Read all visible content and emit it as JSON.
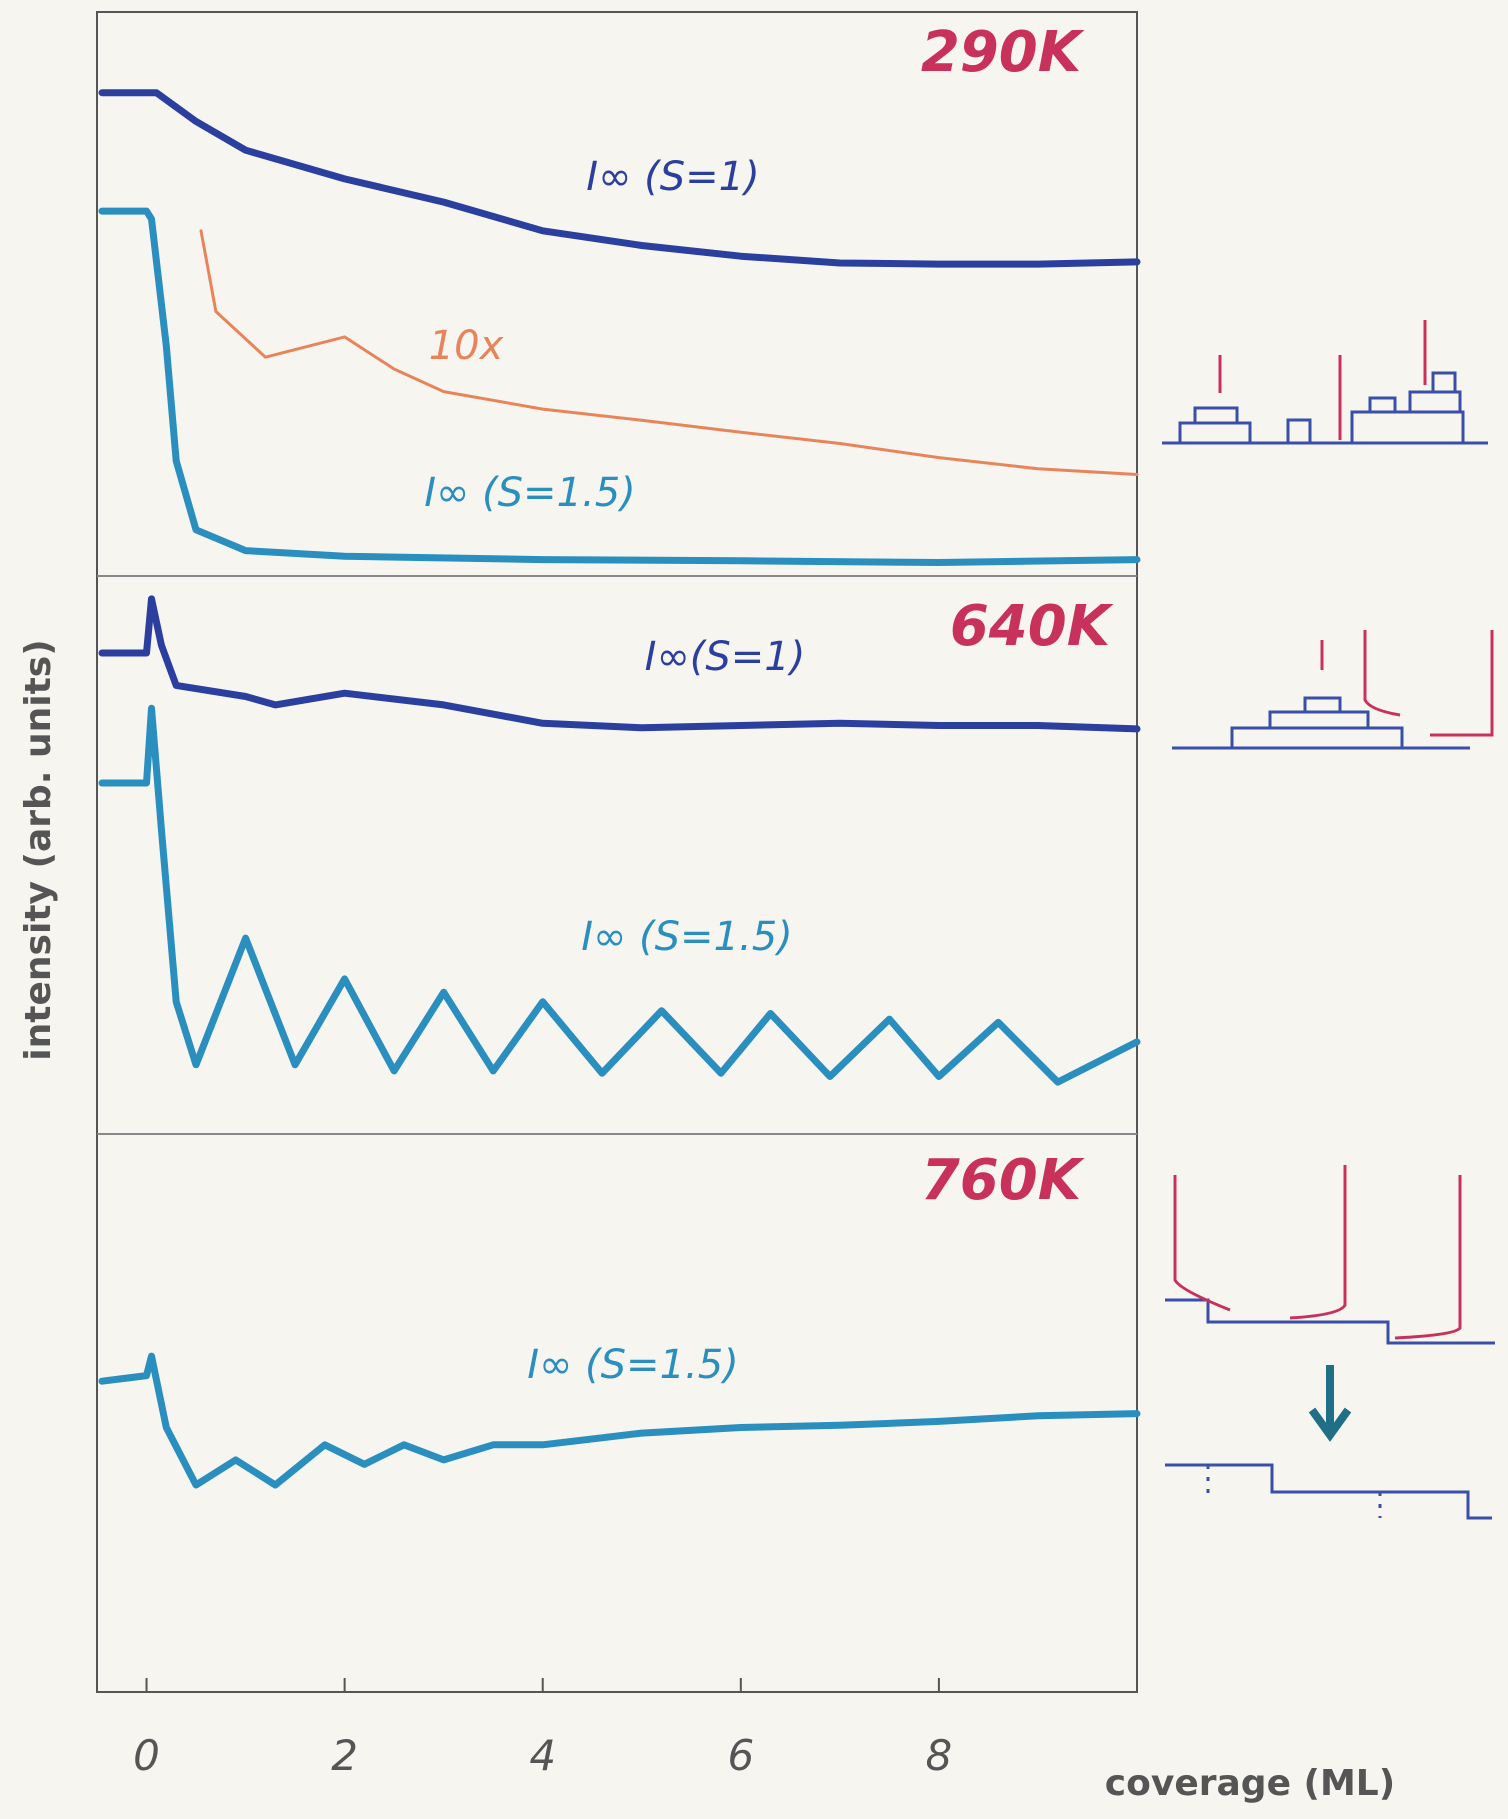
{
  "chart_data": [
    {
      "type": "line",
      "title": "290K",
      "ylabel": "intensity (arb. units)",
      "xlim": [
        -0.5,
        10
      ],
      "ylim": [
        0,
        1
      ],
      "series": [
        {
          "name": "I∞ (S=1)",
          "color": "#2b3f9e",
          "x": [
            -0.45,
            0.1,
            0.5,
            1,
            2,
            3,
            4,
            5,
            6,
            7,
            8,
            9,
            10
          ],
          "values": [
            0.857,
            0.857,
            0.806,
            0.755,
            0.704,
            0.663,
            0.612,
            0.586,
            0.567,
            0.555,
            0.553,
            0.553,
            0.557
          ]
        },
        {
          "name": "10x",
          "color": "#e8845a",
          "x": [
            0.55,
            0.7,
            1.2,
            2,
            2.5,
            3,
            4,
            5,
            6,
            7,
            8,
            9,
            10
          ],
          "values": [
            0.612,
            0.469,
            0.388,
            0.424,
            0.367,
            0.327,
            0.296,
            0.276,
            0.255,
            0.235,
            0.21,
            0.19,
            0.18
          ]
        },
        {
          "name": "I∞ (S=1.5)",
          "color": "#2a8fbf",
          "x": [
            -0.45,
            0,
            0.05,
            0.2,
            0.3,
            0.5,
            1,
            2,
            4,
            6,
            8,
            10
          ],
          "values": [
            0.647,
            0.647,
            0.633,
            0.408,
            0.204,
            0.082,
            0.045,
            0.035,
            0.029,
            0.027,
            0.024,
            0.029
          ]
        }
      ]
    },
    {
      "type": "line",
      "title": "640K",
      "xlim": [
        -0.5,
        10
      ],
      "ylim": [
        0,
        1
      ],
      "series": [
        {
          "name": "I∞(S=1)",
          "color": "#2b3f9e",
          "x": [
            -0.45,
            0,
            0.05,
            0.15,
            0.3,
            1,
            1.3,
            2,
            3,
            4,
            5,
            6,
            7,
            8,
            9,
            10
          ],
          "values": [
            0.862,
            0.862,
            0.959,
            0.876,
            0.804,
            0.784,
            0.769,
            0.79,
            0.769,
            0.736,
            0.728,
            0.732,
            0.736,
            0.732,
            0.732,
            0.726
          ]
        },
        {
          "name": "I∞ (S=1.5)",
          "color": "#2a8fbf",
          "x": [
            -0.45,
            0,
            0.05,
            0.15,
            0.3,
            0.5,
            1,
            1.5,
            2,
            2.5,
            3,
            3.5,
            4,
            4.6,
            5.2,
            5.8,
            6.3,
            6.9,
            7.5,
            8,
            8.6,
            9.2,
            10
          ],
          "values": [
            0.629,
            0.629,
            0.763,
            0.546,
            0.237,
            0.124,
            0.351,
            0.124,
            0.278,
            0.113,
            0.254,
            0.113,
            0.237,
            0.109,
            0.221,
            0.109,
            0.216,
            0.103,
            0.206,
            0.103,
            0.2,
            0.093,
            0.165
          ]
        }
      ]
    },
    {
      "type": "line",
      "title": "760K",
      "xlabel": "coverage (ML)",
      "xlim": [
        -0.5,
        10
      ],
      "ylim": [
        0,
        1
      ],
      "xticks": [
        0,
        2,
        4,
        6,
        8
      ],
      "series": [
        {
          "name": "I∞ (S=1.5)",
          "color": "#2a8fbf",
          "x": [
            -0.45,
            0,
            0.05,
            0.2,
            0.5,
            0.9,
            1.3,
            1.8,
            2.2,
            2.6,
            3,
            3.5,
            4,
            5,
            6,
            7,
            8,
            9,
            10
          ],
          "values": [
            0.557,
            0.567,
            0.602,
            0.474,
            0.371,
            0.416,
            0.371,
            0.443,
            0.408,
            0.443,
            0.416,
            0.443,
            0.443,
            0.464,
            0.474,
            0.478,
            0.485,
            0.495,
            0.499
          ]
        }
      ]
    }
  ]
}
